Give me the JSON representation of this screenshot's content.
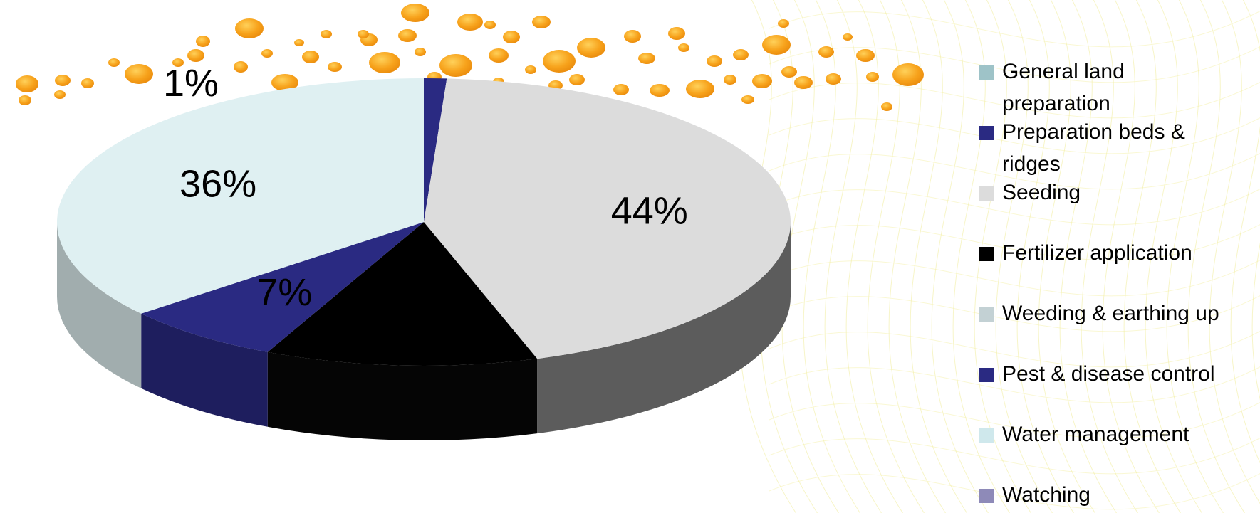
{
  "chart_data": {
    "type": "pie",
    "title": "",
    "style": "3d",
    "legend_position": "right",
    "slices": [
      {
        "label": "General land preparation",
        "value": 0,
        "color": "#9ec3c8"
      },
      {
        "label": "Preparation beds & ridges",
        "value": 1,
        "color": "#2a2a82",
        "data_label": "1%"
      },
      {
        "label": "Seeding",
        "value": 44,
        "color": "#dcdcdc",
        "data_label": "44%"
      },
      {
        "label": "Fertilizer application",
        "value": 12,
        "color": "#000000"
      },
      {
        "label": "Weeding & earthing up",
        "value": 0,
        "color": "#c3d1d4"
      },
      {
        "label": "Pest & disease control",
        "value": 7,
        "color": "#2a2a82",
        "data_label": "7%"
      },
      {
        "label": "Water management",
        "value": 36,
        "color": "#dff0f2",
        "data_label": "36%"
      },
      {
        "label": "Watching",
        "value": 0,
        "color": "#8e8ab8"
      }
    ],
    "legend": [
      {
        "lines": [
          "General land",
          "preparation"
        ],
        "color": "#9ec3c8"
      },
      {
        "lines": [
          "Preparation beds &",
          "ridges"
        ],
        "color": "#2a2a82"
      },
      {
        "lines": [
          "Seeding"
        ],
        "color": "#dcdcdc"
      },
      {
        "lines": [
          "Fertilizer application"
        ],
        "color": "#000000"
      },
      {
        "lines": [
          "Weeding & earthing up"
        ],
        "color": "#c3d1d4"
      },
      {
        "lines": [
          "Pest & disease control"
        ],
        "color": "#2a2a82"
      },
      {
        "lines": [
          "Water management"
        ],
        "color": "#cfe8ec"
      },
      {
        "lines": [
          "Watching"
        ],
        "color": "#8e8ab8"
      }
    ]
  },
  "decor": {
    "dot_color": "#f5a11a"
  }
}
